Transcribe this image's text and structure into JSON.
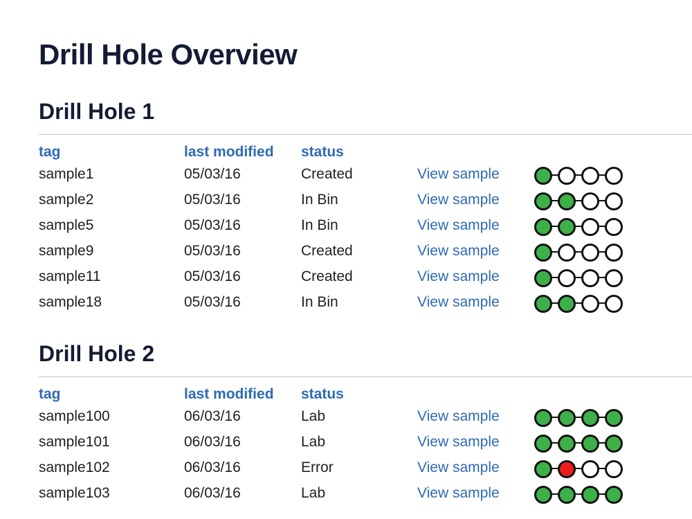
{
  "page": {
    "title": "Drill Hole Overview"
  },
  "colors": {
    "heading": "#141b34",
    "link": "#2e6ab3",
    "step_done": "#3db04a",
    "step_error": "#ee1c1c",
    "step_pending": "#ffffff"
  },
  "sections": [
    {
      "title": "Drill Hole 1",
      "columns": {
        "tag": "tag",
        "last_modified": "last modified",
        "status": "status"
      },
      "rows": [
        {
          "tag": "sample1",
          "last_modified": "05/03/16",
          "status": "Created",
          "link": "View sample",
          "steps": [
            "done",
            "pending",
            "pending",
            "pending"
          ]
        },
        {
          "tag": "sample2",
          "last_modified": "05/03/16",
          "status": "In Bin",
          "link": "View sample",
          "steps": [
            "done",
            "done",
            "pending",
            "pending"
          ]
        },
        {
          "tag": "sample5",
          "last_modified": "05/03/16",
          "status": "In Bin",
          "link": "View sample",
          "steps": [
            "done",
            "done",
            "pending",
            "pending"
          ]
        },
        {
          "tag": "sample9",
          "last_modified": "05/03/16",
          "status": "Created",
          "link": "View sample",
          "steps": [
            "done",
            "pending",
            "pending",
            "pending"
          ]
        },
        {
          "tag": "sample11",
          "last_modified": "05/03/16",
          "status": "Created",
          "link": "View sample",
          "steps": [
            "done",
            "pending",
            "pending",
            "pending"
          ]
        },
        {
          "tag": "sample18",
          "last_modified": "05/03/16",
          "status": "In Bin",
          "link": "View sample",
          "steps": [
            "done",
            "done",
            "pending",
            "pending"
          ]
        }
      ]
    },
    {
      "title": "Drill Hole 2",
      "columns": {
        "tag": "tag",
        "last_modified": "last modified",
        "status": "status"
      },
      "rows": [
        {
          "tag": "sample100",
          "last_modified": "06/03/16",
          "status": "Lab",
          "link": "View sample",
          "steps": [
            "done",
            "done",
            "done",
            "done"
          ]
        },
        {
          "tag": "sample101",
          "last_modified": "06/03/16",
          "status": "Lab",
          "link": "View sample",
          "steps": [
            "done",
            "done",
            "done",
            "done"
          ]
        },
        {
          "tag": "sample102",
          "last_modified": "06/03/16",
          "status": "Error",
          "link": "View sample",
          "steps": [
            "done",
            "error",
            "pending",
            "pending"
          ]
        },
        {
          "tag": "sample103",
          "last_modified": "06/03/16",
          "status": "Lab",
          "link": "View sample",
          "steps": [
            "done",
            "done",
            "done",
            "done"
          ]
        }
      ]
    }
  ]
}
